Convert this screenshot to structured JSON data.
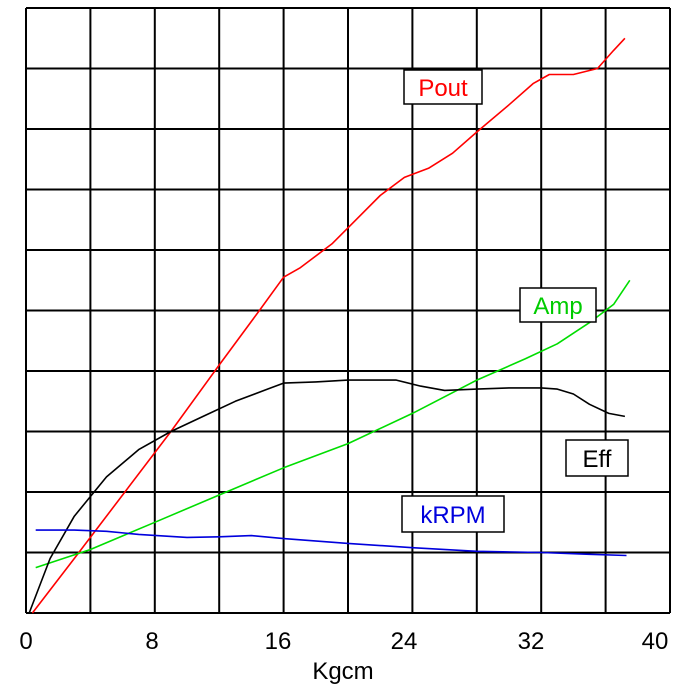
{
  "chart_data": {
    "type": "line",
    "title": "",
    "xlabel": "Kgcm",
    "ylabel": "",
    "xlim": [
      0,
      40
    ],
    "x_ticks": [
      "0",
      "8",
      "16",
      "24",
      "32",
      "40"
    ],
    "grid": true,
    "x_gridlines": [
      0,
      4,
      8,
      12,
      16,
      20,
      24,
      28,
      32,
      36,
      40
    ],
    "y_grid_count": 10,
    "ylim": [
      0,
      10
    ],
    "legend": "inline labels",
    "series": [
      {
        "name": "Pout",
        "color": "#ff0000",
        "points": [
          [
            0.4,
            0.0
          ],
          [
            3,
            0.9
          ],
          [
            6,
            1.95
          ],
          [
            9,
            3.0
          ],
          [
            12,
            4.1
          ],
          [
            14.5,
            5.0
          ],
          [
            16,
            5.55
          ],
          [
            17,
            5.7
          ],
          [
            18,
            5.9
          ],
          [
            19,
            6.1
          ],
          [
            20.5,
            6.5
          ],
          [
            22,
            6.9
          ],
          [
            23.5,
            7.2
          ],
          [
            25,
            7.35
          ],
          [
            26.5,
            7.6
          ],
          [
            28,
            7.95
          ],
          [
            30,
            8.4
          ],
          [
            31.5,
            8.75
          ],
          [
            32.5,
            8.9
          ],
          [
            34,
            8.9
          ],
          [
            35.5,
            9.0
          ],
          [
            36.5,
            9.3
          ],
          [
            37.2,
            9.5
          ]
        ]
      },
      {
        "name": "Amp",
        "color": "#00dd00",
        "points": [
          [
            0.6,
            0.75
          ],
          [
            4,
            1.05
          ],
          [
            8,
            1.5
          ],
          [
            12,
            1.95
          ],
          [
            16,
            2.4
          ],
          [
            20,
            2.8
          ],
          [
            24,
            3.3
          ],
          [
            28,
            3.85
          ],
          [
            31,
            4.2
          ],
          [
            33,
            4.45
          ],
          [
            35,
            4.8
          ],
          [
            36.5,
            5.1
          ],
          [
            37.5,
            5.5
          ]
        ]
      },
      {
        "name": "Eff",
        "color": "#000000",
        "points": [
          [
            0.2,
            0.0
          ],
          [
            1.5,
            0.9
          ],
          [
            3,
            1.6
          ],
          [
            5,
            2.25
          ],
          [
            7,
            2.7
          ],
          [
            9,
            3.0
          ],
          [
            11,
            3.25
          ],
          [
            13,
            3.5
          ],
          [
            15,
            3.7
          ],
          [
            16,
            3.8
          ],
          [
            18,
            3.82
          ],
          [
            20,
            3.85
          ],
          [
            22,
            3.85
          ],
          [
            23,
            3.85
          ],
          [
            24.5,
            3.75
          ],
          [
            26,
            3.68
          ],
          [
            28,
            3.7
          ],
          [
            30,
            3.72
          ],
          [
            32,
            3.72
          ],
          [
            33,
            3.7
          ],
          [
            34,
            3.62
          ],
          [
            35,
            3.45
          ],
          [
            36.2,
            3.3
          ],
          [
            37.2,
            3.25
          ]
        ]
      },
      {
        "name": "kRPM",
        "color": "#0000dd",
        "points": [
          [
            0.6,
            1.37
          ],
          [
            3,
            1.37
          ],
          [
            5,
            1.35
          ],
          [
            7,
            1.3
          ],
          [
            10,
            1.25
          ],
          [
            12,
            1.26
          ],
          [
            14,
            1.28
          ],
          [
            16,
            1.23
          ],
          [
            20,
            1.15
          ],
          [
            24,
            1.08
          ],
          [
            28,
            1.02
          ],
          [
            32,
            1.0
          ],
          [
            35,
            0.97
          ],
          [
            37.3,
            0.95
          ]
        ]
      }
    ],
    "labels": {
      "pout": "Pout",
      "amp": "Amp",
      "eff": "Eff",
      "krpm": "kRPM"
    }
  }
}
